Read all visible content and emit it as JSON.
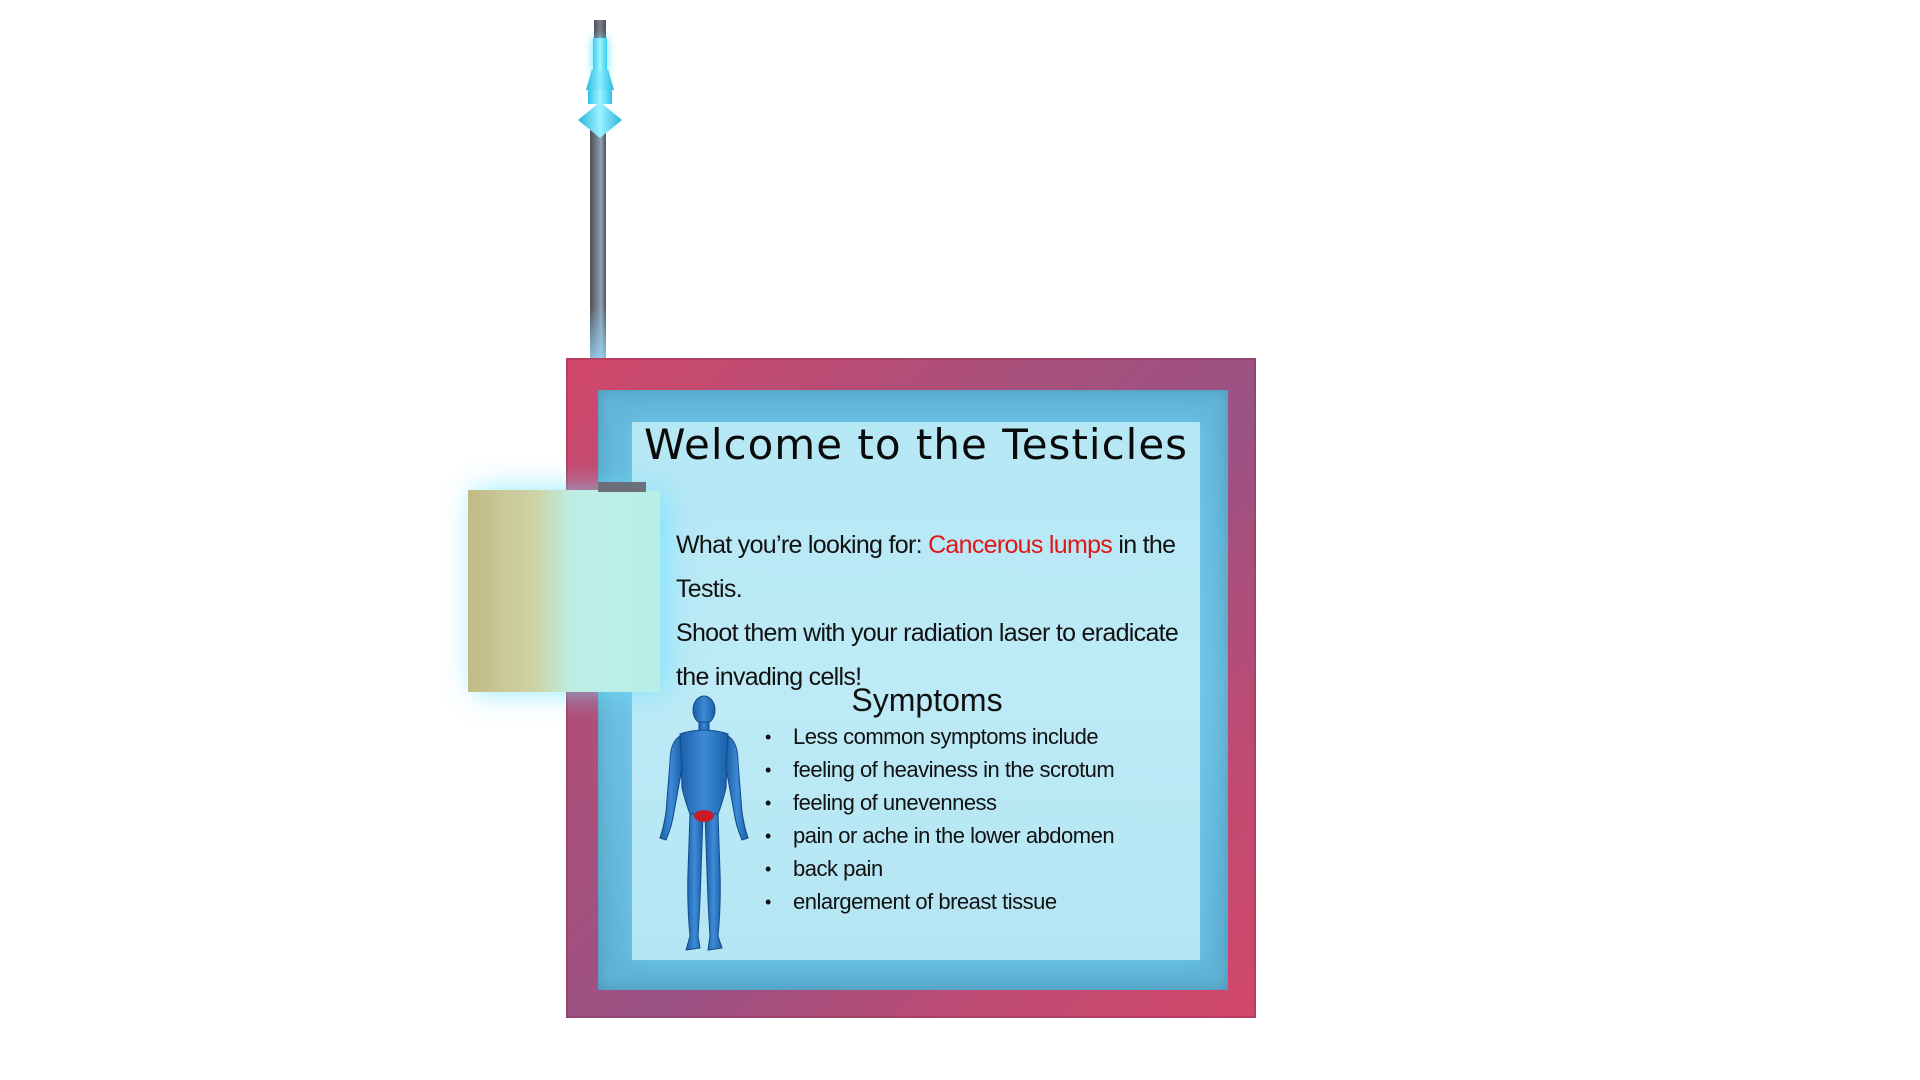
{
  "panel": {
    "title": "Welcome to the Testicles",
    "intro": {
      "lead": "What you’re looking for: ",
      "highlight": "Cancerous lumps",
      "tail": " in the Testis.",
      "instruction": "Shoot them with your radiation laser to eradicate the invading cells!"
    },
    "symptoms": {
      "heading": "Symptoms",
      "items": [
        "Less common symptoms include",
        "feeling of heaviness in the scrotum",
        "feeling of unevenness",
        "pain or ache in the lower abdomen",
        "back pain",
        "enlargement of breast tissue"
      ]
    }
  },
  "colors": {
    "frame": "#c04a72",
    "panel": "#b6e7f5",
    "highlight": "#e11616",
    "glow": "#5fe0ff"
  },
  "icons": {
    "antenna": "laser-antenna-icon",
    "figure": "human-body-icon"
  }
}
